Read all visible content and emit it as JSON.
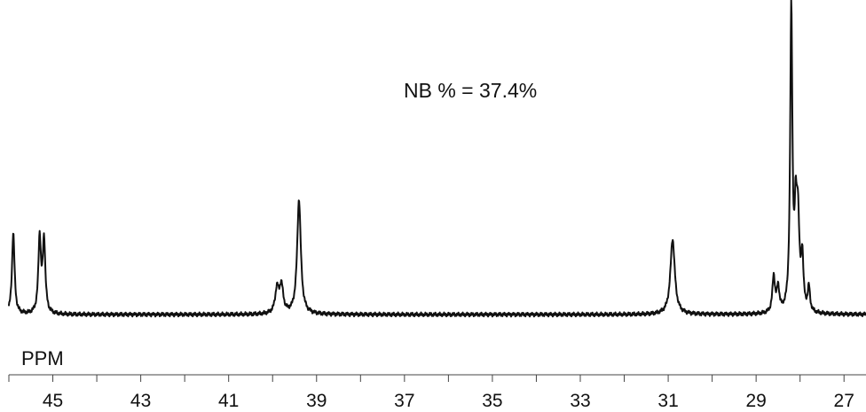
{
  "chart_data": {
    "type": "line",
    "title": "",
    "annotation": "NB % = 37.4%",
    "xlabel": "PPM",
    "ylabel": "",
    "x_reversed": true,
    "xlim": [
      46.0,
      26.5
    ],
    "ylim": [
      0,
      1.0
    ],
    "grid": false,
    "legend": "none",
    "xticks_labeled": [
      45,
      43,
      41,
      39,
      37,
      35,
      33,
      31,
      29,
      27
    ],
    "xticks_minor": [
      46,
      44,
      42,
      40,
      38,
      36,
      34,
      32,
      30,
      28
    ],
    "line_color": "#111111",
    "series": [
      {
        "baseline": 0.0,
        "peaks": [
          {
            "ppm": 45.9,
            "height": 0.27,
            "width": 0.035
          },
          {
            "ppm": 45.3,
            "height": 0.25,
            "width": 0.035
          },
          {
            "ppm": 45.2,
            "height": 0.24,
            "width": 0.035
          },
          {
            "ppm": 39.9,
            "height": 0.08,
            "width": 0.05
          },
          {
            "ppm": 39.8,
            "height": 0.09,
            "width": 0.05
          },
          {
            "ppm": 39.4,
            "height": 0.38,
            "width": 0.05
          },
          {
            "ppm": 30.9,
            "height": 0.25,
            "width": 0.06
          },
          {
            "ppm": 28.6,
            "height": 0.12,
            "width": 0.035
          },
          {
            "ppm": 28.5,
            "height": 0.08,
            "width": 0.035
          },
          {
            "ppm": 28.2,
            "height": 1.0,
            "width": 0.03
          },
          {
            "ppm": 28.1,
            "height": 0.25,
            "width": 0.03
          },
          {
            "ppm": 28.05,
            "height": 0.3,
            "width": 0.04
          },
          {
            "ppm": 27.95,
            "height": 0.17,
            "width": 0.03
          },
          {
            "ppm": 27.8,
            "height": 0.08,
            "width": 0.03
          }
        ]
      }
    ]
  }
}
